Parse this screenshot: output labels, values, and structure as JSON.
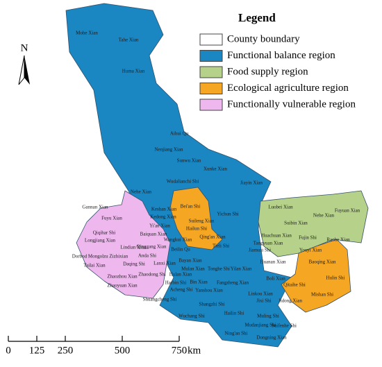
{
  "legend": {
    "title": "Legend",
    "items": [
      {
        "label": "County boundary",
        "color": "#ffffff"
      },
      {
        "label": "Functional balance region",
        "color": "#1a86c2"
      },
      {
        "label": "Food supply region",
        "color": "#b5d18a"
      },
      {
        "label": "Ecological agriculture region",
        "color": "#f5a623"
      },
      {
        "label": "Functionally vulnerable region",
        "color": "#eeb8ee"
      }
    ]
  },
  "north_arrow": {
    "label": "N"
  },
  "scale_bar": {
    "ticks": [
      0,
      125,
      250,
      500,
      750
    ],
    "unit": "km"
  },
  "labels": [
    "Mohe Xian",
    "Tahe Xian",
    "Huma Xian",
    "Aihui Qu",
    "Nenjiang Xian",
    "Sunwu Xian",
    "Xunke Xian",
    "Wudalianchi Shi",
    "Jiayin Xian",
    "Nehe Xian",
    "Keshan Xian",
    "Kedong Xian",
    "Gannan Xian",
    "Fuyu Xian",
    "Yi'an Xian",
    "Bei'an Shi",
    "Baiquan Xian",
    "Qiqihar Shi",
    "Longjiang Xian",
    "Suileng Xian",
    "Hailun Shi",
    "Yichun Shi",
    "Luobei Xian",
    "Nehe Xian",
    "Fuyuan Xian",
    "Suibin Xian",
    "Lindian Xian",
    "Qing'an Xian",
    "Wangkui Xian",
    "Qinggang Xian",
    "Tieli Shi",
    "Fujin Shi",
    "Raohe Xian",
    "Tangyuan Xian",
    "Huachuan Xian",
    "Jiamusi Shi",
    "Youyi Xian",
    "Dorbod Mongolzu Zizhixian",
    "Anda Shi",
    "Tailai Xian",
    "Daqing Shi",
    "Lanxi Xian",
    "Bayan Xian",
    "Beilin Qu",
    "Mulan Xian",
    "Tonghe Shi",
    "Yilan Xian",
    "Huanan Xian",
    "Baoqing Xian",
    "Zhaozhou Xian",
    "Zhaodong Shi",
    "Hulan Xian",
    "Harbin Shi",
    "Bin Xian",
    "Fangzheng Xian",
    "Boli Xian",
    "Qitaihe Shi",
    "Hulin Shi",
    "Zhaoyuan Xian",
    "Acheng Shi",
    "Yanshou Xian",
    "Linkou Xian",
    "Mishan Shi",
    "Jixi Shi",
    "Jidong Xian",
    "Shuangcheng Shi",
    "Shangzhi Shi",
    "Wuchang Shi",
    "Hailin Shi",
    "Muling Shi",
    "Mudanjiang Shi",
    "Suifenhe Shi",
    "Ning'an Shi",
    "Dongning Xian"
  ]
}
